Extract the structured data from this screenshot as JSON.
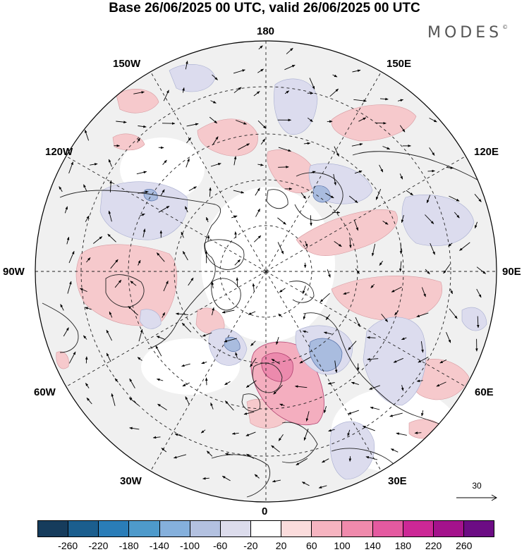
{
  "title": "Base 26/06/2025 00 UTC, valid 26/06/2025 00 UTC",
  "brand": "MODES",
  "brand_mark": "©",
  "longitude_labels": {
    "top": "180",
    "bottom": "0",
    "left": "90W",
    "right": "90E",
    "upper_left_1": "150W",
    "upper_left_2": "120W",
    "upper_right_1": "150E",
    "upper_right_2": "120E",
    "lower_left_1": "60W",
    "lower_left_2": "30W",
    "lower_right_1": "60E",
    "lower_right_2": "30E"
  },
  "reference_vector": {
    "label": "30"
  },
  "colorbar": {
    "colors": [
      "#163c5c",
      "#1b5e8e",
      "#2a7db8",
      "#4e9acb",
      "#85b0dc",
      "#b3c1e0",
      "#dcdcec",
      "#ffffff",
      "#fbdcdc",
      "#f6b4c0",
      "#f08aac",
      "#e45aa0",
      "#cc2896",
      "#a4128c",
      "#6c0c84"
    ],
    "ticks": [
      "-260",
      "-220",
      "-180",
      "-140",
      "-100",
      "-60",
      "-20",
      "20",
      "60",
      "100",
      "140",
      "180",
      "220",
      "260"
    ]
  }
}
